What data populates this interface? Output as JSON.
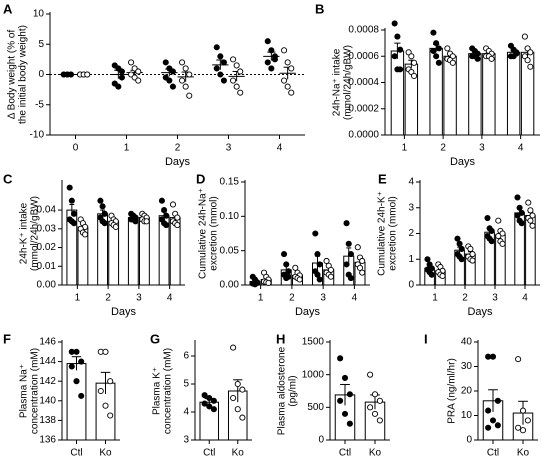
{
  "chart_data": [
    {
      "label": "A",
      "type": "dot",
      "ylabel": [
        "Δ Body weight (% of",
        "the initial body weight)"
      ],
      "xlabel": "Days",
      "categories": [
        "0",
        "1",
        "2",
        "3",
        "4"
      ],
      "ylim": [
        -10,
        10
      ],
      "yticks": [
        -10,
        -5,
        0,
        5,
        10
      ],
      "hline": 0,
      "series": [
        {
          "marker": "filled",
          "values": [
            0,
            0,
            0.3,
            1.6,
            3
          ],
          "errors": [
            0,
            0.7,
            0.6,
            0.8,
            0.7
          ],
          "points": [
            [
              0,
              0,
              0,
              0,
              0,
              0
            ],
            [
              1.5,
              1,
              -0.5,
              -1.5,
              -2,
              0.5
            ],
            [
              2,
              1,
              0.5,
              -0.5,
              -1,
              -2
            ],
            [
              4.5,
              3,
              2,
              1,
              0,
              -1
            ],
            [
              5.5,
              4,
              3,
              2,
              1,
              2.5
            ]
          ]
        },
        {
          "marker": "open",
          "values": [
            0,
            0.3,
            -0.4,
            -0.3,
            0.2
          ],
          "errors": [
            0,
            0.4,
            0.8,
            0.8,
            1.0
          ],
          "points": [
            [
              0,
              0,
              0,
              0,
              0,
              0
            ],
            [
              2,
              1,
              0.5,
              0,
              -0.5,
              -1
            ],
            [
              2,
              1,
              0,
              -1,
              -2,
              -3.5
            ],
            [
              2.5,
              1.5,
              0.5,
              -1,
              -2,
              -3
            ],
            [
              4,
              2,
              1,
              -1,
              -2,
              -3
            ]
          ]
        }
      ]
    },
    {
      "label": "B",
      "type": "bar",
      "ylabel": [
        "24h-Na⁺ intake",
        "(mmol/24h/gBW)"
      ],
      "xlabel": "Days",
      "categories": [
        "1",
        "2",
        "3",
        "4"
      ],
      "ylim": [
        0,
        0.0008
      ],
      "yticks": [
        {
          "value": 0,
          "label": "0.0000"
        },
        {
          "value": 0.0002,
          "label": "0.0002"
        },
        {
          "value": 0.0004,
          "label": "0.0004"
        },
        {
          "value": 0.0006,
          "label": "0.0006"
        },
        {
          "value": 0.0008,
          "label": "0.0008"
        }
      ],
      "series": [
        {
          "marker": "filled",
          "values": [
            0.00064,
            0.00066,
            0.00062,
            0.00063
          ],
          "errors": [
            6e-05,
            3e-05,
            1e-05,
            1e-05
          ],
          "points": [
            [
              0.00085,
              0.00075,
              0.00065,
              0.0006,
              0.0005,
              0.0005
            ],
            [
              0.00078,
              0.0007,
              0.00066,
              0.00064,
              0.0006,
              0.00055
            ],
            [
              0.00066,
              0.00064,
              0.00062,
              0.0006,
              0.0006,
              0.00058
            ],
            [
              0.00068,
              0.00065,
              0.00063,
              0.0006,
              0.0006,
              0.00062
            ]
          ]
        },
        {
          "marker": "open",
          "values": [
            0.00054,
            0.0006,
            0.00062,
            0.00063
          ],
          "errors": [
            3e-05,
            2e-05,
            1e-05,
            3e-05
          ],
          "points": [
            [
              0.00063,
              0.0006,
              0.00055,
              0.0005,
              0.00048,
              0.00045
            ],
            [
              0.00066,
              0.00062,
              0.0006,
              0.00058,
              0.00057,
              0.00055
            ],
            [
              0.00066,
              0.00064,
              0.00062,
              0.0006,
              0.0006,
              0.00058
            ],
            [
              0.00075,
              0.00066,
              0.00063,
              0.0006,
              0.00057,
              0.00052
            ]
          ]
        }
      ]
    },
    {
      "label": "C",
      "type": "bar",
      "ylabel": [
        "24h-K⁺ intake",
        "(mmol/24h/gBW)"
      ],
      "xlabel": "Days",
      "categories": [
        "1",
        "2",
        "3",
        "4"
      ],
      "ylim": [
        0,
        0.055
      ],
      "yticks": [
        {
          "value": 0,
          "label": "0.00"
        },
        {
          "value": 0.01,
          "label": "0.01"
        },
        {
          "value": 0.02,
          "label": "0.02"
        },
        {
          "value": 0.03,
          "label": "0.03"
        },
        {
          "value": 0.04,
          "label": "0.04"
        }
      ],
      "series": [
        {
          "marker": "filled",
          "values": [
            0.04,
            0.038,
            0.036,
            0.037
          ],
          "errors": [
            0.003,
            0.002,
            0.001,
            0.002
          ],
          "points": [
            [
              0.052,
              0.045,
              0.038,
              0.035,
              0.034,
              0.033
            ],
            [
              0.045,
              0.042,
              0.038,
              0.036,
              0.034,
              0.033
            ],
            [
              0.038,
              0.037,
              0.036,
              0.035,
              0.035,
              0.034
            ],
            [
              0.045,
              0.04,
              0.037,
              0.035,
              0.033,
              0.032
            ]
          ]
        },
        {
          "marker": "open",
          "values": [
            0.031,
            0.034,
            0.036,
            0.036
          ],
          "errors": [
            0.002,
            0.001,
            0.001,
            0.002
          ],
          "points": [
            [
              0.035,
              0.033,
              0.031,
              0.03,
              0.028,
              0.027
            ],
            [
              0.037,
              0.035,
              0.034,
              0.033,
              0.032,
              0.031
            ],
            [
              0.038,
              0.037,
              0.036,
              0.035,
              0.034,
              0.034
            ],
            [
              0.043,
              0.038,
              0.036,
              0.034,
              0.033,
              0.032
            ]
          ]
        }
      ]
    },
    {
      "label": "D",
      "type": "bar",
      "ylabel": [
        "Cumulative 24h-Na⁺",
        "excretion (mmol)"
      ],
      "xlabel": "Days",
      "categories": [
        "1",
        "2",
        "3",
        "4"
      ],
      "ylim": [
        0,
        0.15
      ],
      "yticks": [
        {
          "value": 0,
          "label": "0.00"
        },
        {
          "value": 0.05,
          "label": "0.05"
        },
        {
          "value": 0.1,
          "label": "0.10"
        },
        {
          "value": 0.15,
          "label": "0.15"
        }
      ],
      "series": [
        {
          "marker": "filled",
          "values": [
            0.005,
            0.022,
            0.032,
            0.042
          ],
          "errors": [
            0.002,
            0.008,
            0.01,
            0.012
          ],
          "points": [
            [
              0.012,
              0.008,
              0.004,
              0.002,
              0.001,
              0.003
            ],
            [
              0.045,
              0.03,
              0.02,
              0.015,
              0.01,
              0.012
            ],
            [
              0.075,
              0.045,
              0.03,
              0.02,
              0.015,
              0.008
            ],
            [
              0.09,
              0.06,
              0.045,
              0.03,
              0.015,
              0.01
            ]
          ]
        },
        {
          "marker": "open",
          "values": [
            0.008,
            0.014,
            0.022,
            0.033
          ],
          "errors": [
            0.003,
            0.003,
            0.004,
            0.006
          ],
          "points": [
            [
              0.018,
              0.012,
              0.008,
              0.005,
              0.004,
              0.003
            ],
            [
              0.025,
              0.018,
              0.014,
              0.012,
              0.01,
              0.008
            ],
            [
              0.035,
              0.028,
              0.022,
              0.018,
              0.015,
              0.012
            ],
            [
              0.055,
              0.04,
              0.035,
              0.03,
              0.025,
              0.018
            ]
          ]
        }
      ]
    },
    {
      "label": "E",
      "type": "bar",
      "ylabel": [
        "Cumulative 24h-K⁺",
        "excretion (mmol)"
      ],
      "xlabel": "Days",
      "categories": [
        "1",
        "2",
        "3",
        "4"
      ],
      "ylim": [
        0,
        4
      ],
      "yticks": [
        0,
        1,
        2,
        3,
        4
      ],
      "series": [
        {
          "marker": "filled",
          "values": [
            0.65,
            1.35,
            2.05,
            2.8
          ],
          "errors": [
            0.09,
            0.12,
            0.13,
            0.15
          ],
          "points": [
            [
              1,
              0.8,
              0.65,
              0.6,
              0.5,
              0.4
            ],
            [
              1.8,
              1.6,
              1.4,
              1.2,
              1.1,
              1
            ],
            [
              2.6,
              2.2,
              2.1,
              1.9,
              1.8,
              1.7
            ],
            [
              3.4,
              3,
              2.8,
              2.7,
              2.5,
              2.4
            ]
          ]
        },
        {
          "marker": "open",
          "values": [
            0.55,
            1.2,
            1.95,
            2.7
          ],
          "errors": [
            0.07,
            0.09,
            0.13,
            0.12
          ],
          "points": [
            [
              0.8,
              0.7,
              0.55,
              0.5,
              0.4,
              0.35
            ],
            [
              1.5,
              1.4,
              1.2,
              1.1,
              1,
              0.95
            ],
            [
              2.5,
              2.1,
              2,
              1.9,
              1.7,
              1.6
            ],
            [
              3.2,
              2.9,
              2.7,
              2.6,
              2.5,
              2.3
            ]
          ]
        }
      ]
    },
    {
      "label": "F",
      "type": "single",
      "ylabel": [
        "Plasma Na⁺",
        "concentration (mM)"
      ],
      "categories": [
        "Ctl",
        "Ko"
      ],
      "ylim": [
        136,
        146
      ],
      "yticks": [
        136,
        138,
        140,
        142,
        144,
        146
      ],
      "markers": [
        "filled",
        "open"
      ],
      "values": [
        143.8,
        141.8
      ],
      "errors": [
        0.7,
        1.1
      ],
      "points": [
        [
          145,
          145,
          144,
          143.5,
          142,
          140.5
        ],
        [
          145,
          145,
          142,
          141,
          139.5,
          138.5
        ]
      ]
    },
    {
      "label": "G",
      "type": "single",
      "ylabel": [
        "Plasma K⁺",
        "concentration (mM)"
      ],
      "categories": [
        "Ctl",
        "Ko"
      ],
      "ylim": [
        3,
        6.5
      ],
      "yticks": [
        3,
        4,
        5,
        6
      ],
      "markers": [
        "filled",
        "open"
      ],
      "values": [
        4.35,
        4.75
      ],
      "errors": [
        0.13,
        0.4
      ],
      "points": [
        [
          4.6,
          4.5,
          4.4,
          4.3,
          4.2,
          4.1
        ],
        [
          6.3,
          5,
          4.8,
          4.5,
          4.1,
          3.8
        ]
      ]
    },
    {
      "label": "H",
      "type": "single",
      "ylabel": [
        "Plasma aldosterone",
        "(pg/ml)"
      ],
      "categories": [
        "Ctl",
        "Ko"
      ],
      "ylim": [
        0,
        1500
      ],
      "yticks": [
        0,
        500,
        1000,
        1500
      ],
      "markers": [
        "filled",
        "open"
      ],
      "values": [
        690,
        580
      ],
      "errors": [
        160,
        110
      ],
      "points": [
        [
          1250,
          950,
          700,
          600,
          400,
          250
        ],
        [
          1000,
          700,
          600,
          500,
          400,
          300
        ]
      ]
    },
    {
      "label": "I",
      "type": "single",
      "ylabel": [
        "PRA (ng/ml/hr)"
      ],
      "categories": [
        "Ctl",
        "Ko"
      ],
      "ylim": [
        0,
        40
      ],
      "yticks": [
        0,
        10,
        20,
        30,
        40
      ],
      "markers": [
        "filled",
        "open"
      ],
      "values": [
        16,
        11
      ],
      "errors": [
        4.5,
        4.8
      ],
      "points": [
        [
          34,
          34,
          16,
          12,
          8,
          6,
          5
        ],
        [
          33,
          12,
          8,
          5,
          4
        ]
      ]
    }
  ]
}
